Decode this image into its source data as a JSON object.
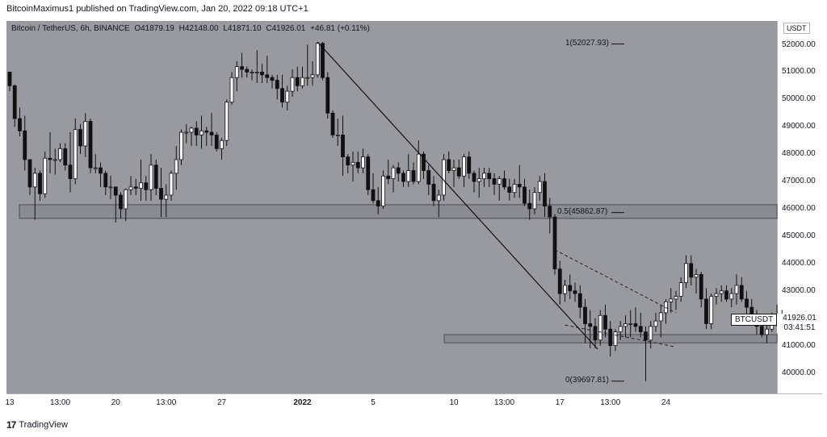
{
  "header": {
    "published": "BitcoinMaximus1 published on TradingView.com, Jan 20, 2022 09:18 UTC+1"
  },
  "legend": {
    "symbol": "Bitcoin / TetherUS, 6h, BINANCE",
    "o": "O41879.19",
    "h": "H42148.00",
    "l": "L41871.10",
    "c": "C41926.01",
    "change": "+46.81 (+0.11%)"
  },
  "axis": {
    "unit": "USDT",
    "symbol_tag": "BTCUSDT",
    "last_price": "41926.01",
    "countdown": "03:41:51"
  },
  "footer": {
    "brand_mark": "17",
    "brand": "TradingView"
  },
  "chart_data": {
    "type": "candlestick",
    "ylim": [
      39200,
      52700
    ],
    "yticks": [
      "52000.00",
      "51000.00",
      "50000.00",
      "49000.00",
      "48000.00",
      "47000.00",
      "46000.00",
      "45000.00",
      "44000.00",
      "43000.00",
      "42000.00",
      "41000.00",
      "40000.00"
    ],
    "ytick_values": [
      52000,
      51000,
      50000,
      49000,
      48000,
      47000,
      46000,
      45000,
      44000,
      43000,
      42000,
      41000,
      40000
    ],
    "xticks": [
      {
        "label": "13",
        "i": 0
      },
      {
        "label": "13:00",
        "i": 10
      },
      {
        "label": "20",
        "i": 21
      },
      {
        "label": "13:00",
        "i": 31
      },
      {
        "label": "27",
        "i": 42
      },
      {
        "label": "2022",
        "i": 58,
        "bold": true
      },
      {
        "label": "5",
        "i": 72
      },
      {
        "label": "10",
        "i": 88
      },
      {
        "label": "13:00",
        "i": 98
      },
      {
        "label": "17",
        "i": 109
      },
      {
        "label": "13:00",
        "i": 119
      },
      {
        "label": "24",
        "i": 130
      }
    ],
    "fib_levels": [
      {
        "label": "1(52027.93)",
        "value": 52027.93
      },
      {
        "label": "0.5(45862.87)",
        "value": 45862.87
      },
      {
        "label": "0(39697.81)",
        "value": 39697.81
      }
    ],
    "support_zones": [
      {
        "from": 45650,
        "to": 46150
      },
      {
        "from": 41100,
        "to": 41400
      }
    ],
    "candles": [
      [
        51000,
        51000,
        50300,
        50500
      ],
      [
        50500,
        50550,
        49000,
        49300
      ],
      [
        49300,
        49700,
        48650,
        48850
      ],
      [
        48850,
        49400,
        47400,
        47800
      ],
      [
        47800,
        47800,
        46500,
        46800
      ],
      [
        46800,
        47500,
        45600,
        47300
      ],
      [
        47300,
        47400,
        46300,
        46550
      ],
      [
        46550,
        48100,
        46400,
        47850
      ],
      [
        47850,
        48800,
        47300,
        47800
      ],
      [
        47800,
        48200,
        47250,
        47800
      ],
      [
        47800,
        48400,
        47700,
        48200
      ],
      [
        48200,
        48400,
        47400,
        47600
      ],
      [
        47600,
        48800,
        46600,
        47100
      ],
      [
        47100,
        49300,
        46900,
        48900
      ],
      [
        48900,
        49100,
        48000,
        48300
      ],
      [
        48300,
        49500,
        47900,
        49200
      ],
      [
        49200,
        49300,
        47300,
        47500
      ],
      [
        47500,
        48000,
        47300,
        47500
      ],
      [
        47500,
        47700,
        46800,
        47300
      ],
      [
        47300,
        47400,
        46500,
        46800
      ],
      [
        46800,
        47200,
        46350,
        46800
      ],
      [
        46800,
        46800,
        45500,
        46500
      ],
      [
        46500,
        46600,
        45650,
        46000
      ],
      [
        46000,
        46750,
        45550,
        46700
      ],
      [
        46700,
        47200,
        46500,
        46800
      ],
      [
        46800,
        47100,
        46500,
        46750
      ],
      [
        46750,
        47800,
        46300,
        46950
      ],
      [
        46950,
        47200,
        46300,
        46700
      ],
      [
        46700,
        48000,
        46300,
        47600
      ],
      [
        47600,
        47800,
        46500,
        46750
      ],
      [
        46750,
        47500,
        45700,
        46350
      ],
      [
        46350,
        46900,
        45700,
        46500
      ],
      [
        46500,
        47400,
        46300,
        47300
      ],
      [
        47300,
        48300,
        46700,
        47800
      ],
      [
        47800,
        48900,
        47600,
        48800
      ],
      [
        48800,
        49100,
        48400,
        48800
      ],
      [
        48800,
        49000,
        48300,
        48950
      ],
      [
        48950,
        49200,
        48300,
        48700
      ],
      [
        48700,
        49400,
        48200,
        48850
      ],
      [
        48850,
        49000,
        48300,
        48800
      ],
      [
        48800,
        49500,
        48300,
        48700
      ],
      [
        48700,
        48800,
        48100,
        48200
      ],
      [
        48200,
        48600,
        47800,
        48500
      ],
      [
        48500,
        50000,
        48300,
        49900
      ],
      [
        49900,
        51000,
        49800,
        50800
      ],
      [
        50800,
        51400,
        50300,
        51200
      ],
      [
        51200,
        51700,
        50800,
        51100
      ],
      [
        51100,
        51200,
        50800,
        51000
      ],
      [
        51000,
        51100,
        50700,
        51000
      ],
      [
        51000,
        51800,
        50600,
        51000
      ],
      [
        51000,
        51300,
        50600,
        50900
      ],
      [
        50900,
        51600,
        50600,
        50800
      ],
      [
        50800,
        50900,
        50400,
        50700
      ],
      [
        50700,
        50900,
        50000,
        50400
      ],
      [
        50400,
        50900,
        49700,
        49900
      ],
      [
        49900,
        50500,
        49600,
        50300
      ],
      [
        50300,
        51100,
        50100,
        50800
      ],
      [
        50800,
        51200,
        50300,
        50500
      ],
      [
        50500,
        51200,
        50400,
        50800
      ],
      [
        50800,
        52000,
        50500,
        50800
      ],
      [
        50800,
        51400,
        50500,
        50900
      ],
      [
        50900,
        52100,
        50800,
        52050
      ],
      [
        52050,
        52100,
        50700,
        50800
      ],
      [
        50800,
        51000,
        49300,
        49500
      ],
      [
        49500,
        49600,
        48600,
        48700
      ],
      [
        48700,
        49300,
        48300,
        48700
      ],
      [
        48700,
        49400,
        47200,
        47900
      ],
      [
        47900,
        48000,
        47300,
        47600
      ],
      [
        47600,
        48100,
        47000,
        47700
      ],
      [
        47700,
        48100,
        47300,
        47500
      ],
      [
        47500,
        48200,
        47300,
        47900
      ],
      [
        47900,
        48000,
        46500,
        46700
      ],
      [
        46700,
        47300,
        46200,
        46300
      ],
      [
        46300,
        46800,
        45800,
        46100
      ],
      [
        46100,
        47400,
        46000,
        47200
      ],
      [
        47200,
        47800,
        46900,
        47100
      ],
      [
        47100,
        47600,
        46600,
        47500
      ],
      [
        47500,
        47700,
        47000,
        47300
      ],
      [
        47300,
        47400,
        46800,
        47000
      ],
      [
        47000,
        48000,
        46800,
        47400
      ],
      [
        47400,
        47700,
        46900,
        47000
      ],
      [
        47000,
        48500,
        46900,
        48000
      ],
      [
        48000,
        48100,
        47100,
        47400
      ],
      [
        47400,
        47600,
        46500,
        46900
      ],
      [
        46900,
        47200,
        46100,
        46300
      ],
      [
        46300,
        46700,
        45700,
        46500
      ],
      [
        46500,
        48000,
        46300,
        47800
      ],
      [
        47800,
        48100,
        47300,
        47400
      ],
      [
        47400,
        47800,
        46800,
        47500
      ],
      [
        47500,
        47800,
        47100,
        47200
      ],
      [
        47200,
        48000,
        46800,
        47900
      ],
      [
        47900,
        48100,
        47100,
        47300
      ],
      [
        47300,
        47400,
        46600,
        47000
      ],
      [
        47000,
        47500,
        46400,
        47100
      ],
      [
        47100,
        47500,
        46800,
        47300
      ],
      [
        47300,
        47500,
        46800,
        47100
      ],
      [
        47100,
        47300,
        46500,
        46900
      ],
      [
        46900,
        47200,
        46300,
        47100
      ],
      [
        47100,
        47400,
        46700,
        46800
      ],
      [
        46800,
        47100,
        46300,
        46600
      ],
      [
        46600,
        47100,
        46400,
        46900
      ],
      [
        46900,
        47600,
        46400,
        46800
      ],
      [
        46800,
        47100,
        46100,
        46200
      ],
      [
        46200,
        46700,
        45600,
        46000
      ],
      [
        46000,
        46800,
        45800,
        46600
      ],
      [
        46600,
        47200,
        46300,
        47000
      ],
      [
        47000,
        47300,
        45700,
        46100
      ],
      [
        46100,
        46400,
        45100,
        45700
      ],
      [
        45700,
        45800,
        43600,
        43800
      ],
      [
        43800,
        44100,
        42500,
        42900
      ],
      [
        42900,
        43400,
        42600,
        43200
      ],
      [
        43200,
        43600,
        42700,
        43000
      ],
      [
        43000,
        43300,
        42600,
        42900
      ],
      [
        42900,
        43200,
        42000,
        42400
      ],
      [
        42400,
        42700,
        41100,
        41800
      ],
      [
        41800,
        42300,
        40900,
        41700
      ],
      [
        41700,
        42000,
        40900,
        41200
      ],
      [
        41200,
        42300,
        41000,
        42100
      ],
      [
        42100,
        42500,
        41300,
        41600
      ],
      [
        41600,
        41900,
        40600,
        41000
      ],
      [
        41000,
        41600,
        40800,
        41500
      ],
      [
        41500,
        41900,
        41200,
        41700
      ],
      [
        41700,
        42100,
        41300,
        41800
      ],
      [
        41800,
        42300,
        41300,
        41800
      ],
      [
        41800,
        42400,
        41500,
        41700
      ],
      [
        41700,
        42200,
        41300,
        41500
      ],
      [
        41500,
        41700,
        39700,
        41200
      ],
      [
        41200,
        41900,
        40900,
        41700
      ],
      [
        41700,
        42200,
        41500,
        41900
      ],
      [
        41900,
        42500,
        41300,
        42200
      ],
      [
        42200,
        42700,
        41800,
        42600
      ],
      [
        42600,
        43100,
        42200,
        42700
      ],
      [
        42700,
        43000,
        42300,
        42800
      ],
      [
        42800,
        43500,
        42600,
        43300
      ],
      [
        43300,
        44300,
        43100,
        44000
      ],
      [
        44000,
        44300,
        43200,
        43500
      ],
      [
        43500,
        43800,
        42900,
        43600
      ],
      [
        43600,
        43700,
        42400,
        42700
      ],
      [
        42700,
        43100,
        41600,
        41800
      ],
      [
        41800,
        42900,
        41600,
        42800
      ],
      [
        42800,
        43100,
        42500,
        42900
      ],
      [
        42900,
        43200,
        42600,
        43000
      ],
      [
        43000,
        43200,
        42600,
        42700
      ],
      [
        42700,
        43100,
        42400,
        42900
      ],
      [
        42900,
        43600,
        42500,
        43200
      ],
      [
        43200,
        43500,
        42600,
        42700
      ],
      [
        42700,
        43000,
        42100,
        42400
      ],
      [
        42400,
        42700,
        41900,
        42000
      ],
      [
        42000,
        42300,
        41400,
        41700
      ],
      [
        41700,
        42100,
        41300,
        41400
      ],
      [
        41400,
        41800,
        41100,
        41600
      ],
      [
        41600,
        42200,
        41500,
        42100
      ],
      [
        42100,
        42500,
        41700,
        41800
      ],
      [
        41800,
        42300,
        41600,
        41900
      ]
    ]
  }
}
